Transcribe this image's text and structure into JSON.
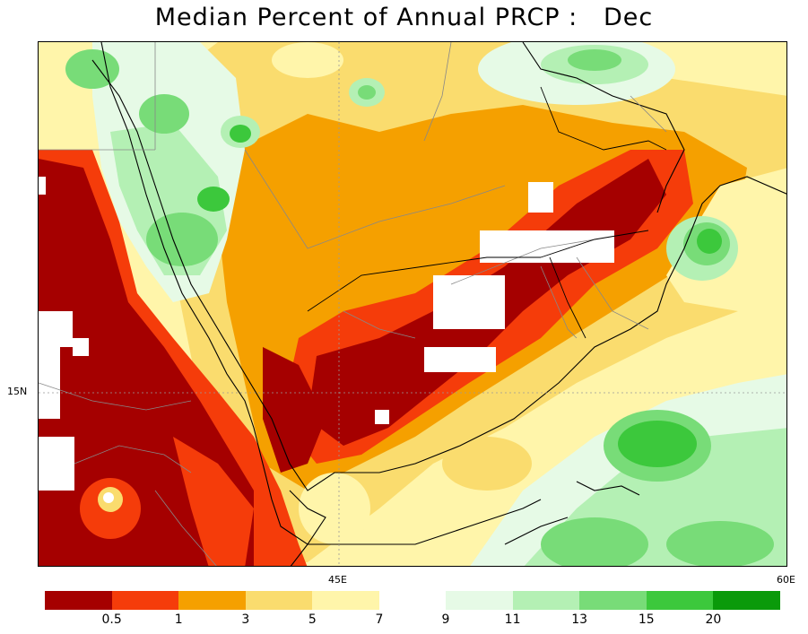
{
  "title": "Median Percent of Annual PRCP :   Dec",
  "map": {
    "lat_labels": [
      {
        "text": "15N"
      }
    ],
    "lon_labels": [
      {
        "text": "45E"
      },
      {
        "text": "60E"
      }
    ]
  },
  "legend": {
    "dry_colors": [
      "#a50000",
      "#f53c0a",
      "#f5a000",
      "#fadc6e",
      "#fff5aa"
    ],
    "dry_labels": [
      "0.5",
      "1",
      "3",
      "5",
      "7"
    ],
    "wet_colors": [
      "#e6fae6",
      "#b4f0b4",
      "#78dc78",
      "#3cc83c",
      "#0a9a0a"
    ],
    "wet_labels": [
      "9",
      "11",
      "13",
      "15",
      "20"
    ]
  }
}
